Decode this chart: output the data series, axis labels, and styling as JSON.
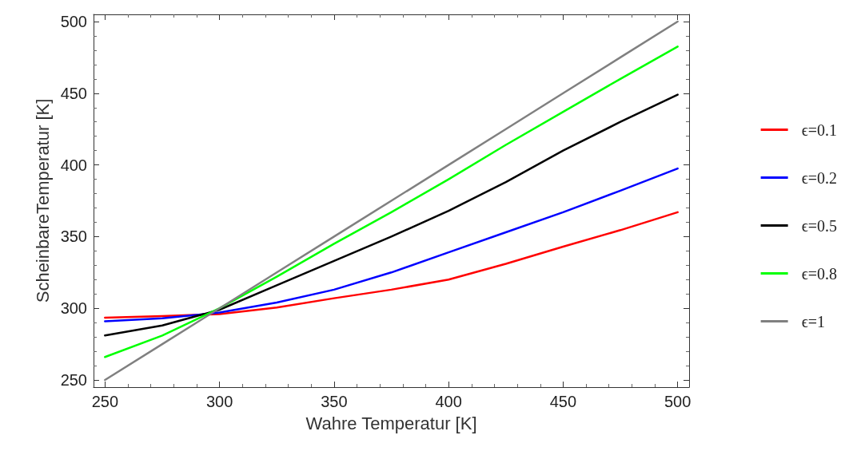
{
  "chart_data": {
    "type": "line",
    "xlabel": "Wahre Temperatur [K]",
    "ylabel": "ScheinbareTemperatur [K]",
    "x": [
      250,
      275,
      300,
      325,
      350,
      375,
      400,
      425,
      450,
      475,
      500
    ],
    "series": [
      {
        "name": "ϵ=0.1",
        "color": "#ff0000",
        "values": [
          293.5,
          294.5,
          296,
          300.5,
          307,
          313,
          320,
          331,
          343,
          354.5,
          367
        ]
      },
      {
        "name": "ϵ=0.2",
        "color": "#0000ff",
        "values": [
          291,
          293,
          297,
          304,
          313,
          325,
          339,
          353,
          367,
          382,
          397.5
        ]
      },
      {
        "name": "ϵ=0.5",
        "color": "#000000",
        "values": [
          281,
          288,
          299,
          316,
          333,
          350,
          368,
          388,
          410,
          430,
          449
        ]
      },
      {
        "name": "ϵ=0.8",
        "color": "#00ff00",
        "values": [
          266,
          281,
          300,
          322,
          345,
          367,
          390,
          414,
          437,
          460,
          482.5
        ]
      },
      {
        "name": "ϵ=1",
        "color": "#808080",
        "values": [
          250,
          275,
          300,
          325,
          350,
          375,
          400,
          425,
          450,
          475,
          500
        ]
      }
    ],
    "xlim": [
      245,
      505
    ],
    "ylim": [
      245,
      505
    ],
    "xticks": [
      250,
      300,
      350,
      400,
      450,
      500
    ],
    "yticks": [
      250,
      300,
      350,
      400,
      450,
      500
    ],
    "grid": false,
    "legend": "right",
    "marker": "none",
    "line_style": "solid"
  }
}
